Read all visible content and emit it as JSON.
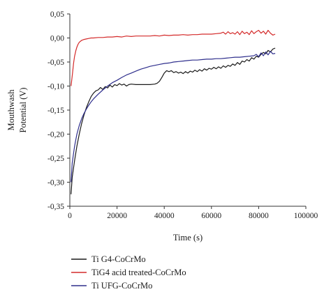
{
  "chart_data": {
    "type": "line",
    "xlabel": "Time (s)",
    "ylabel_lines": [
      "Mouthwash",
      "Potential (V)"
    ],
    "xlim": [
      0,
      100000
    ],
    "ylim": [
      -0.35,
      0.05
    ],
    "x_ticks": [
      0,
      20000,
      40000,
      60000,
      80000,
      100000
    ],
    "x_tick_labels": [
      "0",
      "20000",
      "40000",
      "60000",
      "80000",
      "100000"
    ],
    "y_ticks": [
      0.05,
      0.0,
      -0.05,
      -0.1,
      -0.15,
      -0.2,
      -0.25,
      -0.3,
      -0.35
    ],
    "y_tick_labels": [
      "0,05",
      "0,00",
      "-0,05",
      "-0,10",
      "-0,15",
      "-0,20",
      "-0,25",
      "-0,30",
      "-0,35"
    ],
    "grid": false,
    "legend_position": "below-plot",
    "series": [
      {
        "name": "Ti G4-CoCrMo",
        "color": "#1a1a1a",
        "x": [
          500,
          1000,
          2000,
          3000,
          4000,
          5000,
          6000,
          7000,
          8000,
          9000,
          10000,
          11000,
          12000,
          13000,
          14000,
          15000,
          16000,
          17000,
          18000,
          19000,
          20000,
          21000,
          22000,
          23000,
          24000,
          25000,
          26000,
          28000,
          30000,
          32000,
          34000,
          36000,
          37000,
          38000,
          39000,
          40000,
          41000,
          42000,
          43000,
          44000,
          45000,
          46000,
          47000,
          48000,
          49000,
          50000,
          51000,
          52000,
          53000,
          54000,
          55000,
          56000,
          57000,
          58000,
          59000,
          60000,
          61000,
          62000,
          63000,
          64000,
          65000,
          66000,
          67000,
          68000,
          69000,
          70000,
          71000,
          72000,
          73000,
          74000,
          75000,
          76000,
          77000,
          78000,
          79000,
          80000,
          81000,
          82000,
          83000,
          84000,
          85000,
          86000,
          87000
        ],
        "y": [
          -0.325,
          -0.29,
          -0.255,
          -0.225,
          -0.2,
          -0.178,
          -0.16,
          -0.145,
          -0.133,
          -0.122,
          -0.115,
          -0.11,
          -0.108,
          -0.103,
          -0.107,
          -0.101,
          -0.104,
          -0.098,
          -0.102,
          -0.097,
          -0.099,
          -0.095,
          -0.098,
          -0.096,
          -0.1,
          -0.097,
          -0.096,
          -0.097,
          -0.097,
          -0.097,
          -0.097,
          -0.096,
          -0.094,
          -0.09,
          -0.082,
          -0.073,
          -0.068,
          -0.07,
          -0.068,
          -0.072,
          -0.07,
          -0.073,
          -0.071,
          -0.074,
          -0.07,
          -0.073,
          -0.069,
          -0.071,
          -0.067,
          -0.07,
          -0.066,
          -0.069,
          -0.064,
          -0.067,
          -0.063,
          -0.065,
          -0.061,
          -0.064,
          -0.06,
          -0.063,
          -0.058,
          -0.061,
          -0.057,
          -0.059,
          -0.054,
          -0.057,
          -0.051,
          -0.055,
          -0.048,
          -0.05,
          -0.045,
          -0.048,
          -0.041,
          -0.044,
          -0.038,
          -0.04,
          -0.034,
          -0.03,
          -0.033,
          -0.026,
          -0.029,
          -0.023,
          -0.021
        ]
      },
      {
        "name": "TiG4 acid treated-CoCrMo",
        "color": "#d42a2a",
        "x": [
          500,
          800,
          1200,
          1600,
          2000,
          2500,
          3000,
          3500,
          4000,
          5000,
          6000,
          7000,
          8000,
          9000,
          10000,
          12000,
          14000,
          16000,
          18000,
          20000,
          22000,
          24000,
          26000,
          28000,
          30000,
          32000,
          34000,
          36000,
          38000,
          40000,
          42000,
          44000,
          46000,
          48000,
          50000,
          52000,
          54000,
          56000,
          58000,
          60000,
          62000,
          64000,
          65000,
          66000,
          67000,
          68000,
          69000,
          70000,
          71000,
          72000,
          73000,
          74000,
          75000,
          76000,
          77000,
          78000,
          79000,
          80000,
          81000,
          82000,
          83000,
          84000,
          85000,
          86000,
          87000
        ],
        "y": [
          -0.1,
          -0.088,
          -0.07,
          -0.052,
          -0.038,
          -0.027,
          -0.019,
          -0.013,
          -0.009,
          -0.005,
          -0.003,
          -0.002,
          -0.001,
          0.0,
          0.0,
          0.001,
          0.001,
          0.002,
          0.002,
          0.003,
          0.002,
          0.004,
          0.003,
          0.004,
          0.004,
          0.004,
          0.004,
          0.005,
          0.004,
          0.006,
          0.005,
          0.006,
          0.006,
          0.007,
          0.006,
          0.007,
          0.007,
          0.008,
          0.008,
          0.008,
          0.009,
          0.01,
          0.012,
          0.008,
          0.013,
          0.009,
          0.011,
          0.008,
          0.013,
          0.007,
          0.014,
          0.009,
          0.012,
          0.007,
          0.015,
          0.009,
          0.013,
          0.016,
          0.01,
          0.014,
          0.008,
          0.016,
          0.01,
          0.006,
          0.008
        ]
      },
      {
        "name": "Ti UFG-CoCrMo",
        "color": "#2e2e8c",
        "x": [
          500,
          1000,
          2000,
          3000,
          4000,
          5000,
          6000,
          7000,
          8000,
          9000,
          10000,
          12000,
          14000,
          16000,
          18000,
          20000,
          22000,
          24000,
          26000,
          28000,
          30000,
          32000,
          34000,
          36000,
          38000,
          40000,
          42000,
          44000,
          46000,
          48000,
          50000,
          52000,
          54000,
          56000,
          58000,
          60000,
          62000,
          64000,
          66000,
          68000,
          70000,
          72000,
          74000,
          76000,
          78000,
          79000,
          80000,
          81000,
          82000,
          83000,
          84000,
          85000,
          86000,
          87000
        ],
        "y": [
          -0.3,
          -0.26,
          -0.225,
          -0.2,
          -0.182,
          -0.168,
          -0.157,
          -0.148,
          -0.14,
          -0.133,
          -0.127,
          -0.117,
          -0.108,
          -0.1,
          -0.093,
          -0.088,
          -0.082,
          -0.077,
          -0.073,
          -0.069,
          -0.065,
          -0.062,
          -0.059,
          -0.057,
          -0.055,
          -0.053,
          -0.052,
          -0.05,
          -0.049,
          -0.048,
          -0.047,
          -0.046,
          -0.046,
          -0.045,
          -0.044,
          -0.044,
          -0.043,
          -0.043,
          -0.042,
          -0.041,
          -0.04,
          -0.04,
          -0.039,
          -0.038,
          -0.037,
          -0.034,
          -0.039,
          -0.031,
          -0.037,
          -0.029,
          -0.035,
          -0.028,
          -0.033,
          -0.032
        ]
      }
    ]
  }
}
